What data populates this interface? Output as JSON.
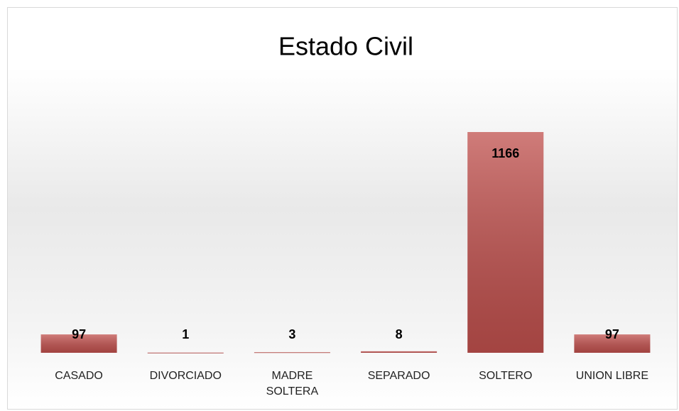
{
  "chart_data": {
    "type": "bar",
    "title": "Estado Civil",
    "categories": [
      "CASADO",
      "DIVORCIADO",
      "MADRE SOLTERA",
      "SEPARADO",
      "SOLTERO",
      "UNION LIBRE"
    ],
    "values": [
      97,
      1,
      3,
      8,
      1166,
      97
    ],
    "color": "#c0504d"
  }
}
